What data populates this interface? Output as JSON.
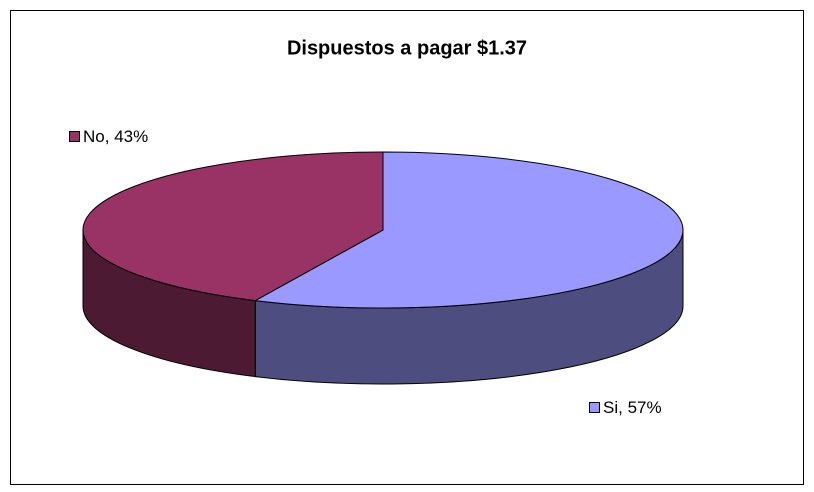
{
  "chart_data": {
    "type": "pie",
    "title": "Dispuestos a pagar $1.37",
    "categories": [
      "Si",
      "No"
    ],
    "values": [
      57,
      43
    ],
    "value_labels": [
      "57%",
      "43%"
    ],
    "colors": [
      "#9999ff",
      "#993366"
    ],
    "side_colors": [
      "#4d4d80",
      "#4d1a33"
    ]
  }
}
